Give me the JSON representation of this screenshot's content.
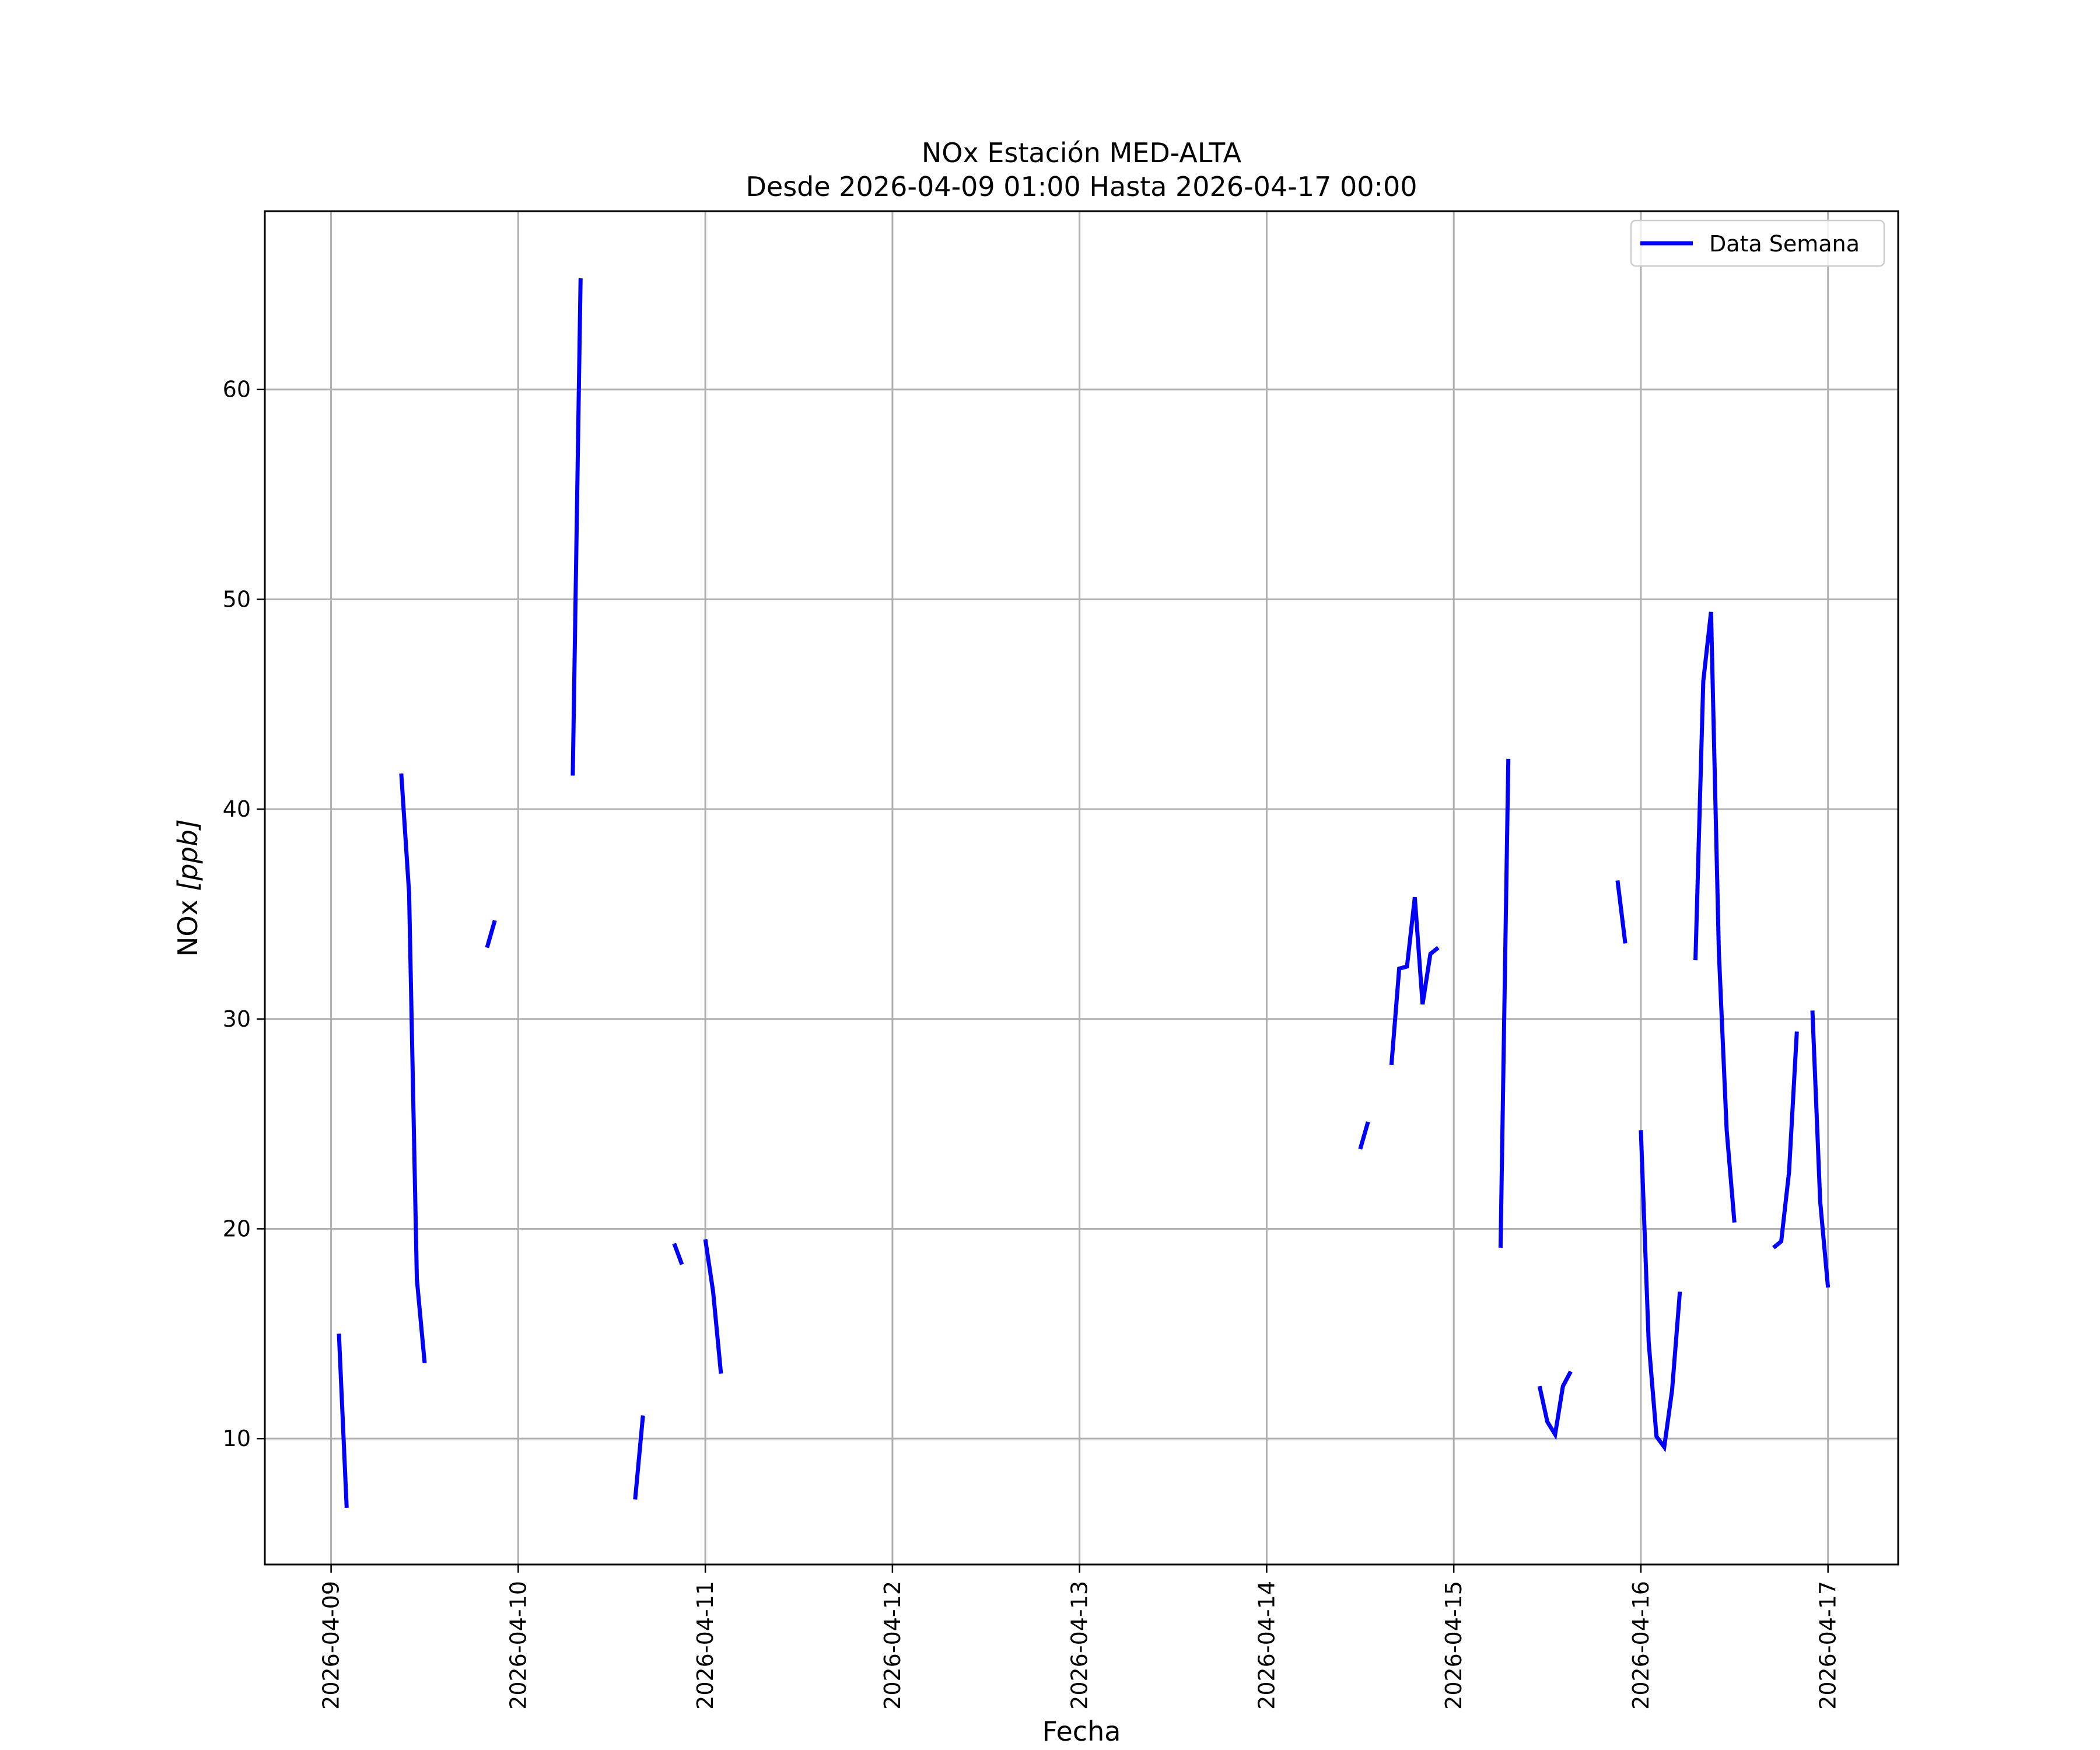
{
  "chart_data": {
    "type": "line",
    "title": "NOx Estación MED-ALTA",
    "subtitle": "Desde 2026-04-09 01:00 Hasta 2026-04-17 00:00",
    "xlabel": "Fecha",
    "ylabel_text": "NOx ",
    "ylabel_unit": "[ppb]",
    "xlim": [
      "2026-04-08 15:30",
      "2026-04-17 09:00"
    ],
    "ylim": [
      4,
      68.5
    ],
    "x_ticks": [
      "2026-04-09",
      "2026-04-10",
      "2026-04-11",
      "2026-04-12",
      "2026-04-13",
      "2026-04-14",
      "2026-04-15",
      "2026-04-16",
      "2026-04-17"
    ],
    "y_ticks": [
      10,
      20,
      30,
      40,
      50,
      60
    ],
    "grid": true,
    "legend_position": "top-right",
    "series_color": "#0000ff",
    "series": [
      {
        "name": "Data Semana",
        "segments": [
          [
            [
              "2026-04-09 01:00",
              15.0
            ],
            [
              "2026-04-09 02:00",
              6.7
            ]
          ],
          [
            [
              "2026-04-09 09:00",
              41.7
            ],
            [
              "2026-04-09 10:00",
              36.0
            ],
            [
              "2026-04-09 11:00",
              17.6
            ],
            [
              "2026-04-09 12:00",
              13.6
            ]
          ],
          [
            [
              "2026-04-09 20:00",
              33.4
            ],
            [
              "2026-04-09 21:00",
              34.7
            ]
          ],
          [
            [
              "2026-04-10 07:00",
              41.6
            ],
            [
              "2026-04-10 08:00",
              65.3
            ]
          ],
          [
            [
              "2026-04-10 15:00",
              7.1
            ],
            [
              "2026-04-10 16:00",
              11.1
            ]
          ],
          [
            [
              "2026-04-10 20:00",
              19.3
            ],
            [
              "2026-04-10 21:00",
              18.3
            ]
          ],
          [
            [
              "2026-04-11 00:00",
              19.5
            ],
            [
              "2026-04-11 01:00",
              17.0
            ],
            [
              "2026-04-11 02:00",
              13.1
            ]
          ],
          [
            [
              "2026-04-14 12:00",
              23.8
            ],
            [
              "2026-04-14 13:00",
              25.1
            ]
          ],
          [
            [
              "2026-04-14 16:00",
              27.8
            ],
            [
              "2026-04-14 17:00",
              32.4
            ],
            [
              "2026-04-14 18:00",
              32.5
            ],
            [
              "2026-04-14 19:00",
              35.8
            ],
            [
              "2026-04-14 20:00",
              30.7
            ],
            [
              "2026-04-14 21:00",
              33.1
            ],
            [
              "2026-04-14 22:00",
              33.4
            ]
          ],
          [
            [
              "2026-04-15 06:00",
              19.1
            ],
            [
              "2026-04-15 07:00",
              42.4
            ]
          ],
          [
            [
              "2026-04-15 11:00",
              12.5
            ],
            [
              "2026-04-15 12:00",
              10.8
            ],
            [
              "2026-04-15 13:00",
              10.2
            ],
            [
              "2026-04-15 14:00",
              12.5
            ],
            [
              "2026-04-15 15:00",
              13.2
            ]
          ],
          [
            [
              "2026-04-15 21:00",
              36.6
            ],
            [
              "2026-04-15 22:00",
              33.6
            ]
          ],
          [
            [
              "2026-04-16 00:00",
              24.7
            ],
            [
              "2026-04-16 01:00",
              14.6
            ],
            [
              "2026-04-16 02:00",
              10.1
            ],
            [
              "2026-04-16 03:00",
              9.6
            ],
            [
              "2026-04-16 04:00",
              12.3
            ],
            [
              "2026-04-16 05:00",
              17.0
            ]
          ],
          [
            [
              "2026-04-16 07:00",
              32.8
            ],
            [
              "2026-04-16 08:00",
              46.1
            ],
            [
              "2026-04-16 09:00",
              49.4
            ],
            [
              "2026-04-16 10:00",
              33.2
            ],
            [
              "2026-04-16 11:00",
              24.7
            ],
            [
              "2026-04-16 12:00",
              20.3
            ]
          ],
          [
            [
              "2026-04-16 17:00",
              19.1
            ],
            [
              "2026-04-16 18:00",
              19.4
            ],
            [
              "2026-04-16 19:00",
              22.7
            ],
            [
              "2026-04-16 20:00",
              29.4
            ]
          ],
          [
            [
              "2026-04-16 22:00",
              30.4
            ],
            [
              "2026-04-16 23:00",
              21.3
            ],
            [
              "2026-04-17 00:00",
              17.2
            ]
          ]
        ]
      }
    ]
  }
}
